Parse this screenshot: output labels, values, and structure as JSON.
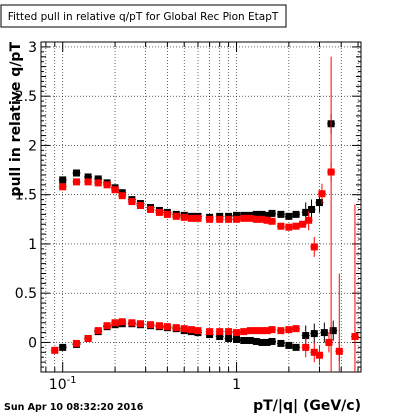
{
  "chart_data": {
    "type": "scatter",
    "title": "Fitted pull in relative q/pT for Global Rec Pion EtapT",
    "xlabel": "pT/|q| (GeV/c)",
    "ylabel": "pull in relative q/pT",
    "xscale": "log",
    "xlim": [
      0.075,
      5.2
    ],
    "ylim": [
      -0.3,
      3.05
    ],
    "grid": true,
    "x_tick_labels": [
      {
        "value": 0.1,
        "label": "10",
        "exp": "-1"
      },
      {
        "value": 1,
        "label": "1",
        "exp": ""
      }
    ],
    "y_tick_labels": [
      {
        "value": 0,
        "label": "0"
      },
      {
        "value": 0.5,
        "label": "0.5"
      },
      {
        "value": 1,
        "label": "1"
      },
      {
        "value": 1.5,
        "label": "1.5"
      },
      {
        "value": 2,
        "label": "2"
      },
      {
        "value": 2.5,
        "label": "2.5"
      },
      {
        "value": 3,
        "label": "3"
      }
    ],
    "series": [
      {
        "color": "#000000",
        "marker": "square",
        "points": [
          [
            0.1,
            1.65
          ],
          [
            0.12,
            1.72
          ],
          [
            0.14,
            1.68
          ],
          [
            0.16,
            1.66
          ],
          [
            0.18,
            1.62
          ],
          [
            0.2,
            1.57
          ],
          [
            0.22,
            1.52
          ],
          [
            0.25,
            1.45
          ],
          [
            0.28,
            1.41
          ],
          [
            0.32,
            1.37
          ],
          [
            0.36,
            1.34
          ],
          [
            0.4,
            1.32
          ],
          [
            0.45,
            1.3
          ],
          [
            0.5,
            1.29
          ],
          [
            0.55,
            1.28
          ],
          [
            0.6,
            1.28
          ],
          [
            0.7,
            1.27
          ],
          [
            0.8,
            1.28
          ],
          [
            0.9,
            1.28
          ],
          [
            1.0,
            1.29
          ],
          [
            1.1,
            1.29
          ],
          [
            1.2,
            1.29
          ],
          [
            1.3,
            1.3
          ],
          [
            1.4,
            1.3
          ],
          [
            1.5,
            1.29
          ],
          [
            1.6,
            1.31
          ],
          [
            1.8,
            1.3
          ],
          [
            2.0,
            1.28
          ],
          [
            2.2,
            1.3
          ],
          [
            2.5,
            1.32
          ],
          [
            2.7,
            1.35
          ],
          [
            3.0,
            1.42
          ],
          [
            3.5,
            2.22
          ]
        ],
        "points2": [
          [
            0.1,
            -0.05
          ],
          [
            0.12,
            -0.02
          ],
          [
            0.14,
            0.04
          ],
          [
            0.16,
            0.11
          ],
          [
            0.18,
            0.16
          ],
          [
            0.2,
            0.18
          ],
          [
            0.22,
            0.19
          ],
          [
            0.25,
            0.19
          ],
          [
            0.28,
            0.18
          ],
          [
            0.32,
            0.17
          ],
          [
            0.36,
            0.16
          ],
          [
            0.4,
            0.15
          ],
          [
            0.45,
            0.14
          ],
          [
            0.5,
            0.12
          ],
          [
            0.55,
            0.11
          ],
          [
            0.6,
            0.1
          ],
          [
            0.7,
            0.08
          ],
          [
            0.8,
            0.06
          ],
          [
            0.9,
            0.04
          ],
          [
            1.0,
            0.03
          ],
          [
            1.1,
            0.02
          ],
          [
            1.2,
            0.02
          ],
          [
            1.3,
            0.01
          ],
          [
            1.4,
            0.0
          ],
          [
            1.5,
            0.0
          ],
          [
            1.6,
            0.01
          ],
          [
            1.8,
            -0.01
          ],
          [
            2.0,
            -0.03
          ],
          [
            2.2,
            -0.05
          ],
          [
            2.5,
            0.07
          ],
          [
            2.8,
            0.09
          ],
          [
            3.2,
            0.1
          ],
          [
            3.6,
            0.12
          ]
        ]
      },
      {
        "color": "#ff0000",
        "marker": "square",
        "points": [
          [
            0.1,
            1.58
          ],
          [
            0.12,
            1.63
          ],
          [
            0.14,
            1.63
          ],
          [
            0.16,
            1.62
          ],
          [
            0.18,
            1.6
          ],
          [
            0.2,
            1.55
          ],
          [
            0.22,
            1.49
          ],
          [
            0.25,
            1.43
          ],
          [
            0.28,
            1.39
          ],
          [
            0.32,
            1.35
          ],
          [
            0.36,
            1.32
          ],
          [
            0.4,
            1.3
          ],
          [
            0.45,
            1.28
          ],
          [
            0.5,
            1.27
          ],
          [
            0.55,
            1.26
          ],
          [
            0.6,
            1.26
          ],
          [
            0.7,
            1.25
          ],
          [
            0.8,
            1.25
          ],
          [
            0.9,
            1.25
          ],
          [
            1.0,
            1.25
          ],
          [
            1.1,
            1.26
          ],
          [
            1.2,
            1.26
          ],
          [
            1.3,
            1.25
          ],
          [
            1.4,
            1.25
          ],
          [
            1.5,
            1.24
          ],
          [
            1.6,
            1.23
          ],
          [
            1.8,
            1.18
          ],
          [
            2.0,
            1.17
          ],
          [
            2.2,
            1.18
          ],
          [
            2.4,
            1.2
          ],
          [
            2.6,
            1.24
          ],
          [
            2.8,
            0.97
          ],
          [
            3.1,
            1.51
          ],
          [
            3.5,
            1.73
          ]
        ],
        "points2": [
          [
            0.09,
            -0.08
          ],
          [
            0.12,
            -0.01
          ],
          [
            0.14,
            0.04
          ],
          [
            0.16,
            0.12
          ],
          [
            0.18,
            0.17
          ],
          [
            0.2,
            0.2
          ],
          [
            0.22,
            0.21
          ],
          [
            0.25,
            0.2
          ],
          [
            0.28,
            0.19
          ],
          [
            0.32,
            0.18
          ],
          [
            0.36,
            0.17
          ],
          [
            0.4,
            0.16
          ],
          [
            0.45,
            0.15
          ],
          [
            0.5,
            0.14
          ],
          [
            0.55,
            0.13
          ],
          [
            0.6,
            0.12
          ],
          [
            0.7,
            0.11
          ],
          [
            0.8,
            0.11
          ],
          [
            0.9,
            0.11
          ],
          [
            1.0,
            0.1
          ],
          [
            1.1,
            0.11
          ],
          [
            1.2,
            0.12
          ],
          [
            1.3,
            0.12
          ],
          [
            1.4,
            0.12
          ],
          [
            1.5,
            0.12
          ],
          [
            1.6,
            0.13
          ],
          [
            1.8,
            0.12
          ],
          [
            2.0,
            0.13
          ],
          [
            2.2,
            0.14
          ],
          [
            2.5,
            -0.05
          ],
          [
            2.8,
            -0.1
          ],
          [
            3.0,
            -0.13
          ],
          [
            3.4,
            0.0
          ],
          [
            3.9,
            -0.09
          ],
          [
            4.8,
            0.06
          ]
        ]
      }
    ]
  },
  "footer": {
    "timestamp": "Sun Apr 10 08:32:20 2016"
  }
}
